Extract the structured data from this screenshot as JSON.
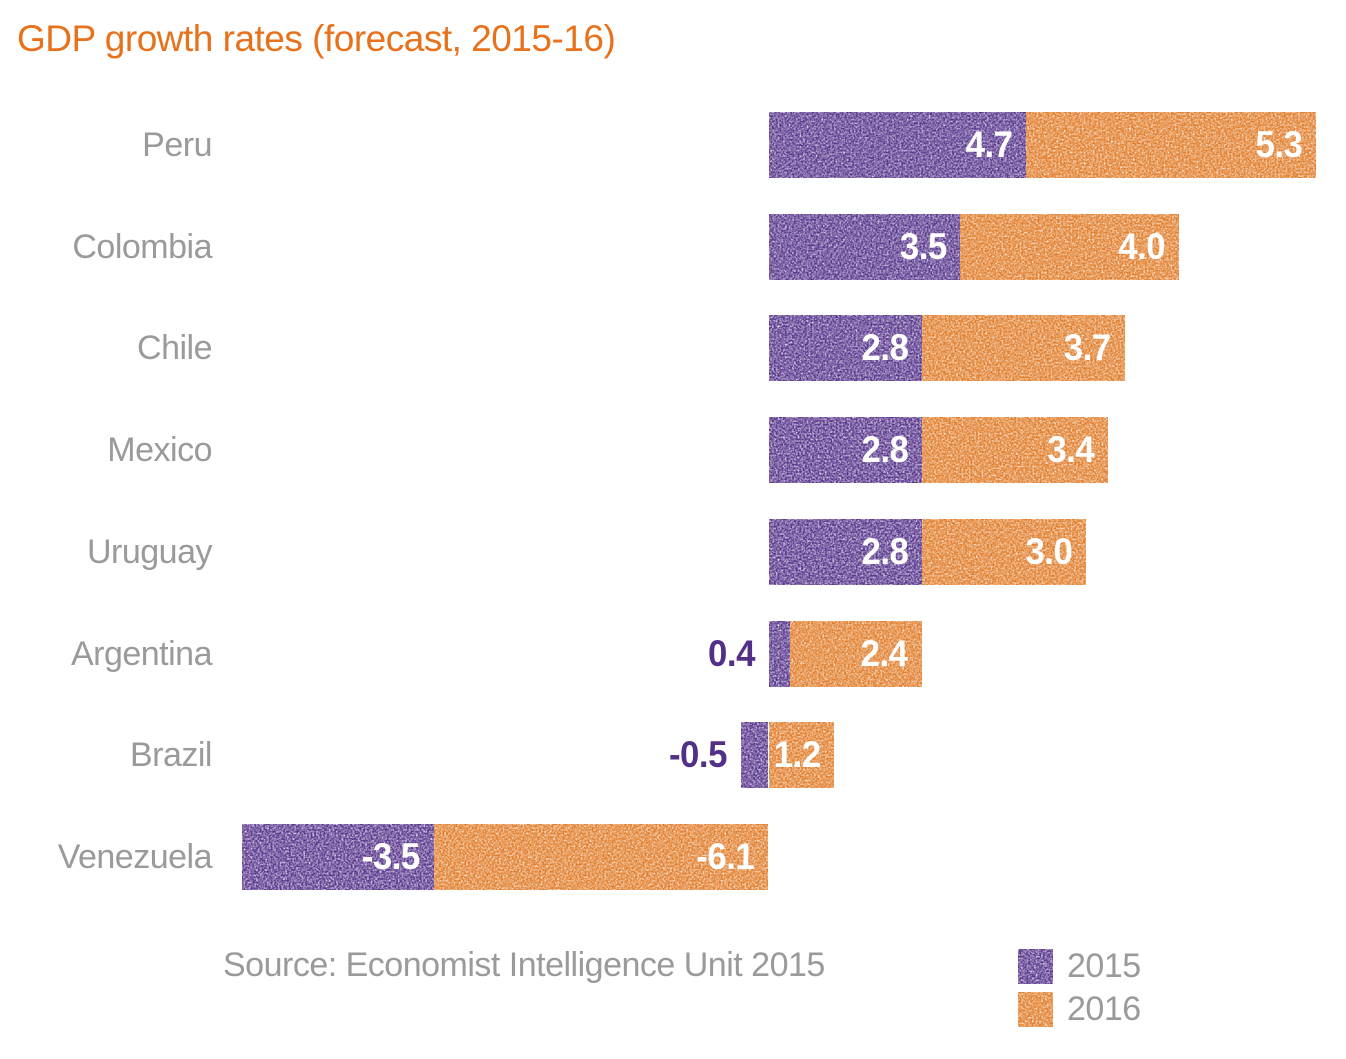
{
  "title": "GDP growth rates (forecast, 2015-16)",
  "source": "Source: Economist Intelligence Unit 2015",
  "colors": {
    "title": "#e8721c",
    "purple": "#57358c",
    "orange": "#e17d2a",
    "label_gray": "#9a9a9a",
    "value_inside": "#ffffff",
    "value_outside": "#533088",
    "background": "#ffffff"
  },
  "legend": {
    "items": [
      {
        "label": "2015",
        "color": "#57358c"
      },
      {
        "label": "2016",
        "color": "#e17d2a"
      }
    ]
  },
  "chart_data": {
    "type": "bar",
    "orientation": "horizontal",
    "stacked": true,
    "title": "GDP growth rates (forecast, 2015-16)",
    "categories": [
      "Peru",
      "Colombia",
      "Chile",
      "Mexico",
      "Uruguay",
      "Argentina",
      "Brazil",
      "Venezuela"
    ],
    "series": [
      {
        "name": "2015",
        "color": "#57358c",
        "values": [
          4.7,
          3.5,
          2.8,
          2.8,
          2.8,
          0.4,
          -0.5,
          -3.5
        ]
      },
      {
        "name": "2016",
        "color": "#e17d2a",
        "values": [
          5.3,
          4.0,
          3.7,
          3.4,
          3.0,
          2.4,
          1.2,
          -6.1
        ]
      }
    ],
    "value_labels": "one decimal, white inside bars; purple outside bar when segment too small",
    "xlabel": "",
    "ylabel": "",
    "axis_hidden": true,
    "grid": false,
    "legend_position": "bottom-right",
    "source_note": "Source: Economist Intelligence Unit 2015"
  }
}
